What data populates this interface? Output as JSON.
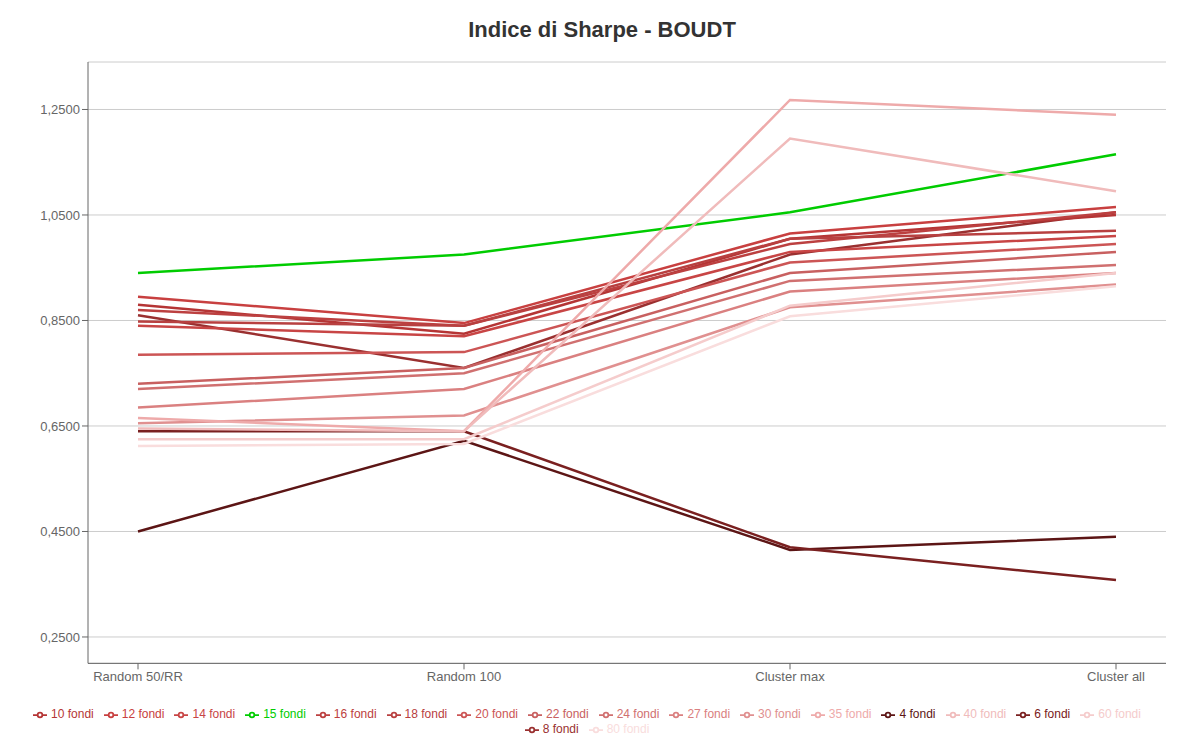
{
  "chart_data": {
    "type": "line",
    "title": "Indice di Sharpe - BOUDT",
    "categories": [
      "Random 50/RR",
      "Random 100",
      "Cluster max",
      "Cluster all"
    ],
    "series": [
      {
        "name": "4 fondi",
        "color": "#5c1515",
        "values": [
          0.45,
          0.622,
          0.415,
          0.44
        ]
      },
      {
        "name": "6 fondi",
        "color": "#7a2020",
        "values": [
          0.64,
          0.64,
          0.42,
          0.358
        ]
      },
      {
        "name": "8 fondi",
        "color": "#9a3030",
        "values": [
          0.86,
          0.76,
          0.975,
          1.055
        ]
      },
      {
        "name": "10 fondi",
        "color": "#b53535",
        "values": [
          0.88,
          0.825,
          1.005,
          1.05
        ]
      },
      {
        "name": "12 fondi",
        "color": "#c84040",
        "values": [
          0.895,
          0.845,
          1.015,
          1.065
        ]
      },
      {
        "name": "14 fondi",
        "color": "#c84545",
        "values": [
          0.84,
          0.82,
          0.98,
          1.01
        ]
      },
      {
        "name": "15 fondi",
        "color": "#00cc00",
        "values": [
          0.94,
          0.975,
          1.055,
          1.165
        ]
      },
      {
        "name": "16 fondi",
        "color": "#bc4040",
        "values": [
          0.87,
          0.84,
          0.995,
          1.055
        ]
      },
      {
        "name": "18 fondi",
        "color": "#b84040",
        "values": [
          0.848,
          0.84,
          1.005,
          1.02
        ]
      },
      {
        "name": "20 fondi",
        "color": "#cc5555",
        "values": [
          0.785,
          0.79,
          0.96,
          0.995
        ]
      },
      {
        "name": "22 fondi",
        "color": "#c86060",
        "values": [
          0.73,
          0.76,
          0.94,
          0.98
        ]
      },
      {
        "name": "24 fondi",
        "color": "#d07070",
        "values": [
          0.72,
          0.75,
          0.925,
          0.955
        ]
      },
      {
        "name": "27 fondi",
        "color": "#da8080",
        "values": [
          0.685,
          0.72,
          0.905,
          0.94
        ]
      },
      {
        "name": "30 fondi",
        "color": "#e09090",
        "values": [
          0.655,
          0.67,
          0.875,
          0.918
        ]
      },
      {
        "name": "35 fondi",
        "color": "#eeaaaa",
        "values": [
          0.665,
          0.64,
          1.268,
          1.24
        ]
      },
      {
        "name": "40 fondi",
        "color": "#f0bbbb",
        "values": [
          0.645,
          0.64,
          1.195,
          1.095
        ]
      },
      {
        "name": "60 fondi",
        "color": "#f5cccc",
        "values": [
          0.625,
          0.625,
          0.878,
          0.94
        ]
      },
      {
        "name": "80 fondi",
        "color": "#f9dddd",
        "values": [
          0.612,
          0.616,
          0.858,
          0.915
        ]
      }
    ],
    "ylim": [
      0.2,
      1.34
    ],
    "yticks": [
      {
        "value": 0.25,
        "label": "0,2500"
      },
      {
        "value": 0.45,
        "label": "0,4500"
      },
      {
        "value": 0.65,
        "label": "0,6500"
      },
      {
        "value": 0.85,
        "label": "0,8500"
      },
      {
        "value": 1.05,
        "label": "1,0500"
      },
      {
        "value": 1.25,
        "label": "1,2500"
      }
    ],
    "grid": true,
    "legend": "bottom"
  }
}
